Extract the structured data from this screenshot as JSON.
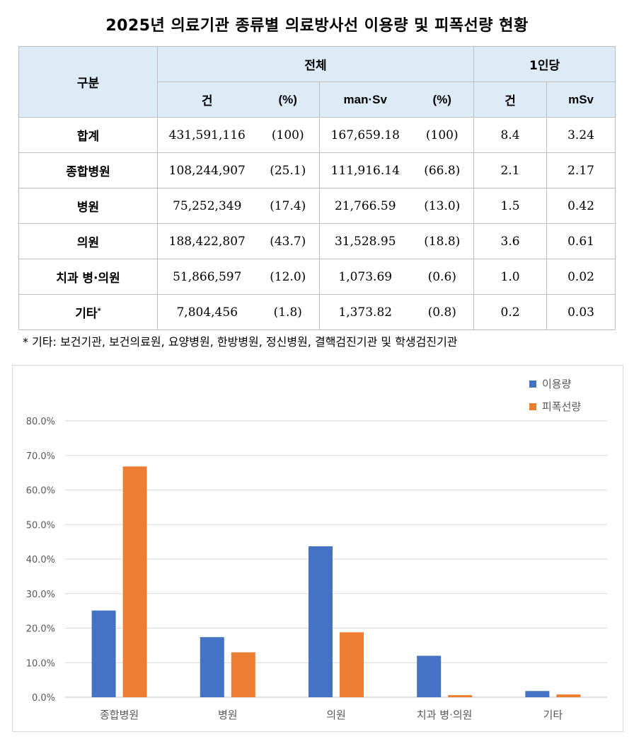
{
  "title": "2025년 의료기관 종류별 의료방사선 이용량 및 피폭선량 현황",
  "table": {
    "header_group": "구분",
    "header_total": "전체",
    "header_per_capita": "1인당",
    "sub_count": "건",
    "sub_pct1": "(%)",
    "sub_dose": "man·Sv",
    "sub_pct2": "(%)",
    "sub_pc_count": "건",
    "sub_pc_dose": "mSv",
    "rows": [
      {
        "label": "합계",
        "sup": "",
        "count": "431,591,116",
        "count_pct": "(100)",
        "dose": "167,659.18",
        "dose_pct": "(100)",
        "pc_count": "8.4",
        "pc_dose": "3.24"
      },
      {
        "label": "종합병원",
        "sup": "",
        "count": "108,244,907",
        "count_pct": "(25.1)",
        "dose": "111,916.14",
        "dose_pct": "(66.8)",
        "pc_count": "2.1",
        "pc_dose": "2.17"
      },
      {
        "label": "병원",
        "sup": "",
        "count": "75,252,349",
        "count_pct": "(17.4)",
        "dose": "21,766.59",
        "dose_pct": "(13.0)",
        "pc_count": "1.5",
        "pc_dose": "0.42"
      },
      {
        "label": "의원",
        "sup": "",
        "count": "188,422,807",
        "count_pct": "(43.7)",
        "dose": "31,528.95",
        "dose_pct": "(18.8)",
        "pc_count": "3.6",
        "pc_dose": "0.61"
      },
      {
        "label": "치과 병·의원",
        "sup": "",
        "count": "51,866,597",
        "count_pct": "(12.0)",
        "dose": "1,073.69",
        "dose_pct": "(0.6)",
        "pc_count": "1.0",
        "pc_dose": "0.02"
      },
      {
        "label": "기타",
        "sup": "*",
        "count": "7,804,456",
        "count_pct": "(1.8)",
        "dose": "1,373.82",
        "dose_pct": "(0.8)",
        "pc_count": "0.2",
        "pc_dose": "0.03"
      }
    ]
  },
  "footnote": "* 기타: 보건기관, 보건의료원, 요양병원, 한방병원, 정신병원, 결핵검진기관 및 학생검진기관",
  "chart_data": {
    "type": "bar",
    "categories": [
      "종합병원",
      "병원",
      "의원",
      "치과 병·의원",
      "기타"
    ],
    "series": [
      {
        "name": "이용량",
        "values": [
          25.1,
          17.4,
          43.7,
          12.0,
          1.8
        ],
        "color": "#4472c4"
      },
      {
        "name": "피폭선량",
        "values": [
          66.8,
          13.0,
          18.8,
          0.6,
          0.8
        ],
        "color": "#ed7d31"
      }
    ],
    "ylim": [
      0,
      80
    ],
    "yticks": [
      "0.0%",
      "10.0%",
      "20.0%",
      "30.0%",
      "40.0%",
      "50.0%",
      "60.0%",
      "70.0%",
      "80.0%"
    ],
    "title": "",
    "xlabel": "",
    "ylabel": "",
    "grid": true,
    "legend": "top-right",
    "gridColor": "#d9d9d9",
    "axisColor": "#bfbfbf",
    "tickTextColor": "#595959"
  }
}
